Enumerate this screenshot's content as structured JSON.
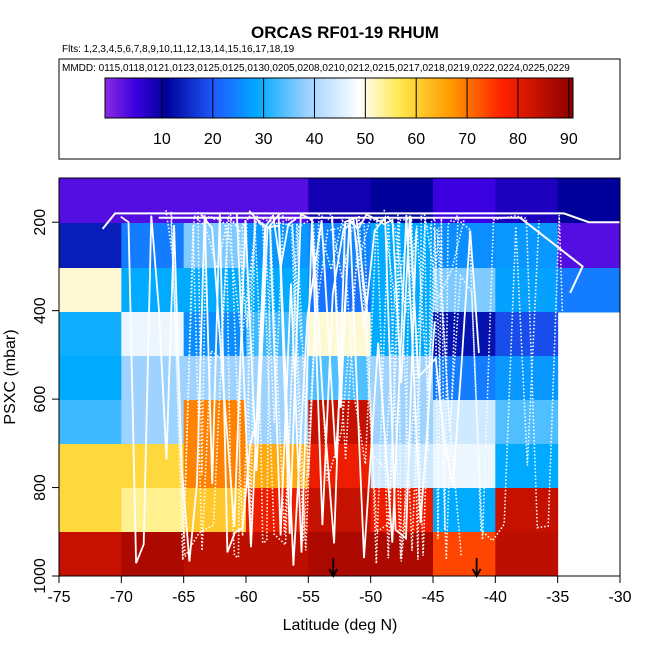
{
  "chart_data": {
    "type": "heatmap",
    "title": "ORCAS RF01-19 RHUM",
    "flights_line": "Flts: 1,2,3,4,5,6,7,8,9,10,11,12,13,14,15,16,17,18,19",
    "dates_line": "MMDD: 0115,0118,0121,0123,0125,0125,0130,0205,0208,0210,0212,0215,0217,0218,0219,0222,0224,0225,0229",
    "xlabel": "Latitude (deg N)",
    "ylabel": "PSXC (mbar)",
    "xlim": [
      -75,
      -30
    ],
    "ylim": [
      1000,
      100
    ],
    "x_ticks": [
      -75,
      -70,
      -65,
      -60,
      -55,
      -50,
      -45,
      -40,
      -35,
      -30
    ],
    "x_tick_labels": [
      "-75",
      "-70",
      "-65",
      "-60",
      "-55",
      "-50",
      "-45",
      "-40",
      "-35",
      "-30"
    ],
    "y_ticks": [
      200,
      400,
      600,
      800,
      1000
    ],
    "y_tick_labels": [
      "200",
      "400",
      "600",
      "800",
      "1000"
    ],
    "colorbar": {
      "range": [
        0,
        92
      ],
      "ticks": [
        10,
        20,
        30,
        40,
        50,
        60,
        70,
        80,
        90
      ],
      "tick_labels": [
        "10",
        "20",
        "30",
        "40",
        "50",
        "60",
        "70",
        "80",
        "90"
      ]
    },
    "lat_edges": [
      -75,
      -70,
      -65,
      -60,
      -55,
      -50,
      -45,
      -40,
      -35,
      -30
    ],
    "p_edges": [
      100,
      200,
      300,
      400,
      500,
      600,
      700,
      800,
      900,
      1000
    ],
    "cells": [
      [
        4,
        4,
        4,
        4,
        10,
        12,
        6,
        9,
        12
      ],
      [
        15,
        25,
        38,
        28,
        26,
        30,
        27,
        28,
        4
      ],
      [
        52,
        30,
        30,
        30,
        24,
        30,
        38,
        29,
        25
      ],
      [
        31,
        48,
        27,
        34,
        52,
        30,
        14,
        20,
        null
      ],
      [
        30,
        40,
        40,
        40,
        35,
        40,
        25,
        28,
        null
      ],
      [
        34,
        40,
        70,
        40,
        85,
        40,
        45,
        35,
        null
      ],
      [
        60,
        60,
        70,
        66,
        80,
        45,
        48,
        30,
        null
      ],
      [
        60,
        55,
        62,
        80,
        85,
        80,
        30,
        85,
        null
      ],
      [
        85,
        88,
        86,
        86,
        88,
        88,
        75,
        86,
        null
      ]
    ],
    "arrows_lat": [
      -53,
      -41.5
    ],
    "line_color": "#ffffff"
  }
}
